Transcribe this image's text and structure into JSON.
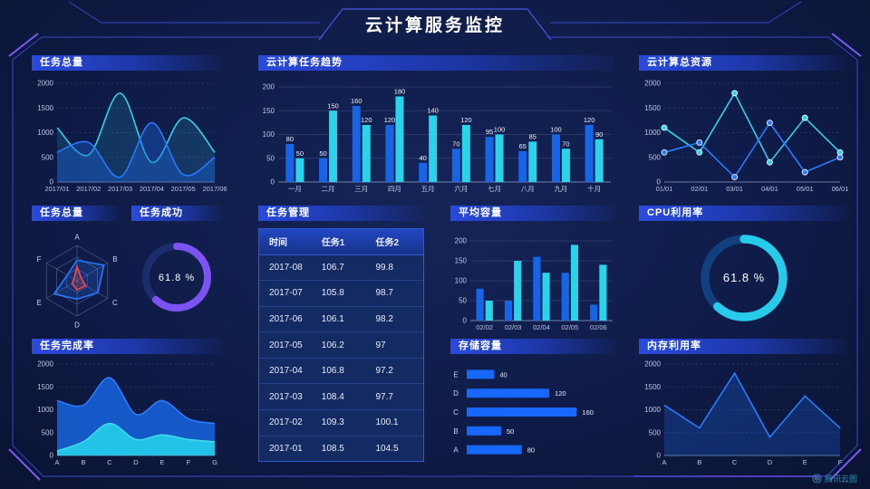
{
  "title": "云计算服务监控",
  "watermark": {
    "label": "腾讯云图"
  },
  "colors": {
    "background": "#0f1c49",
    "frame_line": "#3847c8",
    "frame_accent": "#7a5cf5",
    "series_blue": "#1e6bf0",
    "series_cyan": "#29d3ea",
    "donut_purple": "#7c52f2",
    "radar_red": "#f5484d"
  },
  "panels": {
    "tasks_total_top": {
      "title": "任务总量"
    },
    "task_trend": {
      "title": "云计算任务趋势"
    },
    "total_resources": {
      "title": "云计算总资源"
    },
    "tasks_radar": {
      "title": "任务总量"
    },
    "task_success": {
      "title": "任务成功",
      "value": "61.8 %"
    },
    "task_management": {
      "title": "任务管理",
      "table": {
        "headers": [
          "时间",
          "任务1",
          "任务2"
        ],
        "rows": [
          [
            "2017-08",
            "106.7",
            "99.8"
          ],
          [
            "2017-07",
            "105.8",
            "98.7"
          ],
          [
            "2017-06",
            "106.1",
            "98.2"
          ],
          [
            "2017-05",
            "106.2",
            "97"
          ],
          [
            "2017-04",
            "106.8",
            "97.2"
          ],
          [
            "2017-03",
            "108.4",
            "97.7"
          ],
          [
            "2017-02",
            "109.3",
            "100.1"
          ],
          [
            "2017-01",
            "108.5",
            "104.5"
          ]
        ]
      }
    },
    "avg_capacity": {
      "title": "平均容量"
    },
    "cpu_usage": {
      "title": "CPU利用率",
      "value": "61.8 %"
    },
    "completion_rate": {
      "title": "任务完成率"
    },
    "storage": {
      "title": "存储容量"
    },
    "memory_usage": {
      "title": "内存利用率"
    }
  },
  "chart_data": [
    {
      "id": "tasks-total-line",
      "type": "area",
      "title": "任务总量",
      "x": [
        "2017/01",
        "2017/02",
        "2017/03",
        "2017/04",
        "2017/05",
        "2017/06"
      ],
      "ylim": [
        0,
        2000
      ],
      "yticks": [
        0,
        500,
        1000,
        1500,
        2000
      ],
      "series": [
        {
          "name": "cyan",
          "color": "#2ed3e8",
          "fill": "#2ed3e8",
          "fill_opacity": 0.15,
          "smooth": true,
          "values": [
            1100,
            550,
            1800,
            400,
            1300,
            600
          ]
        },
        {
          "name": "blue",
          "color": "#2979ff",
          "fill": "#1b5fd8",
          "fill_opacity": 0.4,
          "smooth": true,
          "values": [
            600,
            800,
            100,
            1200,
            150,
            500
          ]
        }
      ]
    },
    {
      "id": "task-trend-bars",
      "type": "bar",
      "title": "云计算任务趋势",
      "categories": [
        "一月",
        "二月",
        "三月",
        "四月",
        "五月",
        "六月",
        "七月",
        "八月",
        "九月",
        "十月"
      ],
      "ylim": [
        0,
        200
      ],
      "yticks": [
        0,
        50,
        100,
        150,
        200
      ],
      "bar_labels": true,
      "series": [
        {
          "name": "series1",
          "color": "#1565e6",
          "values": [
            80,
            50,
            160,
            120,
            40,
            70,
            95,
            65,
            100,
            120
          ]
        },
        {
          "name": "series2",
          "color": "#29d3ea",
          "values": [
            50,
            150,
            120,
            180,
            140,
            120,
            100,
            85,
            70,
            90
          ]
        }
      ]
    },
    {
      "id": "resources-line",
      "type": "line",
      "title": "云计算总资源",
      "x": [
        "01/01",
        "02/01",
        "03/01",
        "04/01",
        "05/01",
        "06/01"
      ],
      "ylim": [
        0,
        2000
      ],
      "yticks": [
        0,
        500,
        1000,
        1500,
        2000
      ],
      "series": [
        {
          "name": "cyan",
          "color": "#2ed3e8",
          "markers": true,
          "values": [
            1100,
            600,
            1800,
            400,
            1300,
            600
          ]
        },
        {
          "name": "blue",
          "color": "#2979ff",
          "markers": true,
          "values": [
            600,
            800,
            100,
            1200,
            200,
            500
          ]
        }
      ]
    },
    {
      "id": "tasks-radar",
      "type": "radar",
      "title": "任务总量",
      "axes": [
        "A",
        "B",
        "C",
        "D",
        "E",
        "F"
      ],
      "max": 100,
      "series": [
        {
          "name": "blue",
          "color": "#2979ff",
          "values": [
            58,
            88,
            68,
            52,
            75,
            32
          ]
        },
        {
          "name": "red",
          "color": "#f5484d",
          "values": [
            40,
            14,
            28,
            26,
            16,
            10
          ]
        }
      ]
    },
    {
      "id": "success-donut",
      "type": "donut",
      "title": "任务成功",
      "value": 61.8,
      "label": "61.8 %",
      "color": "#7c52f2",
      "track": "#1c2c6e"
    },
    {
      "id": "avg-capacity-bars",
      "type": "bar",
      "title": "平均容量",
      "categories": [
        "02/02",
        "02/03",
        "02/04",
        "02/05",
        "02/06"
      ],
      "ylim": [
        0,
        200
      ],
      "yticks": [
        0,
        50,
        100,
        150,
        200
      ],
      "bar_labels": false,
      "series": [
        {
          "name": "series1",
          "color": "#1565e6",
          "values": [
            80,
            50,
            160,
            120,
            40
          ]
        },
        {
          "name": "series2",
          "color": "#29d3ea",
          "values": [
            50,
            150,
            120,
            190,
            140
          ]
        }
      ]
    },
    {
      "id": "cpu-donut",
      "type": "donut",
      "title": "CPU利用率",
      "value": 61.8,
      "label": "61.8 %",
      "color": "#25cbe8",
      "track": "#12407e"
    },
    {
      "id": "completion-area",
      "type": "area",
      "title": "任务完成率",
      "x": [
        "A",
        "B",
        "C",
        "D",
        "E",
        "F",
        "G"
      ],
      "ylim": [
        0,
        2000
      ],
      "yticks": [
        0,
        500,
        1000,
        1500,
        2000
      ],
      "series": [
        {
          "name": "blue",
          "color": "#2e7bff",
          "fill": "#1560d6",
          "fill_opacity": 0.9,
          "smooth": true,
          "values": [
            1200,
            1100,
            1700,
            900,
            1200,
            800,
            700
          ]
        },
        {
          "name": "cyan",
          "color": "#3fd8ea",
          "fill": "#22c3e6",
          "fill_opacity": 1,
          "smooth": true,
          "values": [
            100,
            300,
            700,
            350,
            450,
            350,
            300
          ]
        }
      ]
    },
    {
      "id": "storage-hbars",
      "type": "hbar",
      "title": "存储容量",
      "categories": [
        "E",
        "D",
        "C",
        "B",
        "A"
      ],
      "values": [
        40,
        120,
        160,
        50,
        80
      ],
      "xmax": 170,
      "color": "#1667fa"
    },
    {
      "id": "memory-line",
      "type": "line",
      "title": "内存利用率",
      "x": [
        "A",
        "B",
        "C",
        "D",
        "E",
        "F"
      ],
      "ylim": [
        0,
        2000
      ],
      "yticks": [
        0,
        500,
        1000,
        1500,
        2000
      ],
      "series": [
        {
          "name": "blue",
          "color": "#2b7bff",
          "fill": "#1b5fd8",
          "fill_opacity": 0.3,
          "values": [
            1100,
            600,
            1800,
            400,
            1300,
            600
          ]
        }
      ]
    }
  ]
}
